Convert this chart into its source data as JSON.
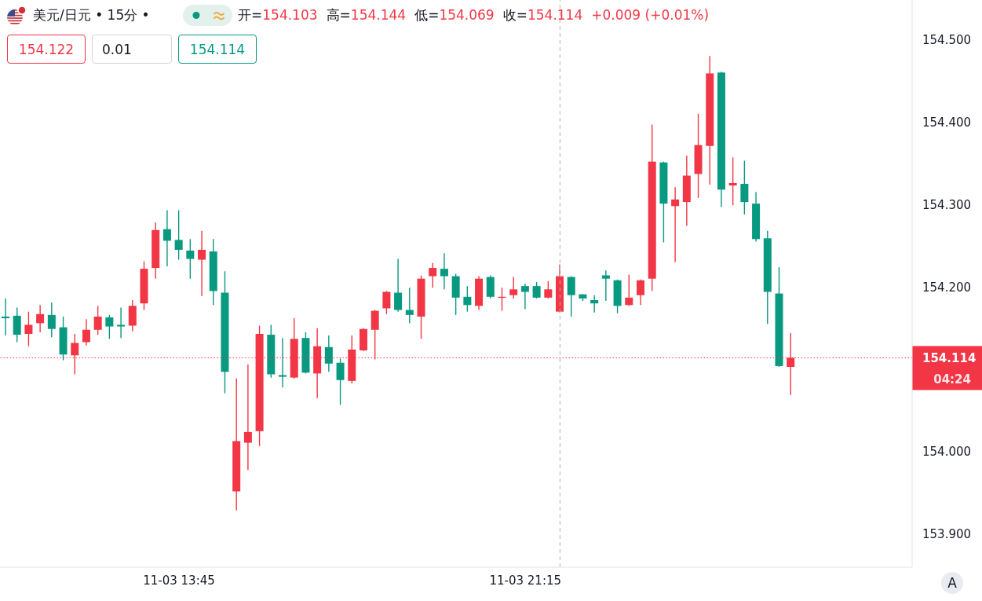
{
  "chart_data": {
    "type": "candlestick",
    "title": "美元/日元 • 15分 •",
    "categories": [
      null,
      null,
      null,
      null,
      null,
      null,
      null,
      null,
      null,
      null,
      null,
      null,
      null,
      null,
      null,
      "11-03 13:45",
      null,
      null,
      null,
      null,
      null,
      null,
      null,
      null,
      null,
      null,
      null,
      null,
      null,
      null,
      null,
      null,
      null,
      null,
      null,
      null,
      null,
      null,
      null,
      null,
      null,
      null,
      null,
      null,
      null,
      "11-03 21:15",
      null,
      null,
      null,
      null,
      null,
      null,
      null,
      null,
      null,
      null,
      null,
      null,
      null,
      null,
      null,
      null,
      null,
      null,
      null,
      null,
      null,
      null,
      null,
      null,
      null,
      null,
      null,
      null,
      null,
      null,
      null,
      null,
      null
    ],
    "ohlc": [
      [
        154.164,
        154.186,
        154.141,
        154.162
      ],
      [
        154.165,
        154.175,
        154.133,
        154.142
      ],
      [
        154.143,
        154.17,
        154.128,
        154.154
      ],
      [
        154.156,
        154.178,
        154.145,
        154.167
      ],
      [
        154.166,
        154.181,
        154.139,
        154.149
      ],
      [
        154.151,
        154.164,
        154.111,
        154.118
      ],
      [
        154.117,
        154.143,
        154.094,
        154.132
      ],
      [
        154.133,
        154.161,
        154.129,
        154.148
      ],
      [
        154.148,
        154.177,
        154.142,
        154.164
      ],
      [
        154.163,
        154.166,
        154.137,
        154.152
      ],
      [
        154.154,
        154.175,
        154.138,
        154.152
      ],
      [
        154.153,
        154.184,
        154.146,
        154.177
      ],
      [
        154.18,
        154.231,
        154.172,
        154.222
      ],
      [
        154.223,
        154.278,
        154.21,
        154.269
      ],
      [
        154.27,
        154.293,
        154.225,
        154.256
      ],
      [
        154.257,
        154.293,
        154.233,
        154.245
      ],
      [
        154.244,
        154.258,
        154.21,
        154.234
      ],
      [
        154.233,
        154.268,
        154.189,
        154.245
      ],
      [
        154.243,
        154.258,
        154.178,
        154.195
      ],
      [
        154.193,
        154.219,
        154.071,
        154.097
      ],
      [
        153.952,
        154.089,
        153.929,
        154.013
      ],
      [
        154.011,
        154.106,
        153.978,
        154.024
      ],
      [
        154.025,
        154.153,
        154.007,
        154.143
      ],
      [
        154.142,
        154.154,
        154.09,
        154.094
      ],
      [
        154.093,
        154.138,
        154.078,
        154.091
      ],
      [
        154.09,
        154.162,
        154.089,
        154.137
      ],
      [
        154.138,
        154.145,
        154.095,
        154.096
      ],
      [
        154.095,
        154.15,
        154.065,
        154.128
      ],
      [
        154.127,
        154.141,
        154.097,
        154.107
      ],
      [
        154.108,
        154.113,
        154.057,
        154.087
      ],
      [
        154.086,
        154.141,
        154.083,
        154.124
      ],
      [
        154.123,
        154.15,
        154.122,
        154.149
      ],
      [
        154.148,
        154.172,
        154.112,
        154.171
      ],
      [
        154.174,
        154.195,
        154.167,
        154.194
      ],
      [
        154.193,
        154.234,
        154.17,
        154.172
      ],
      [
        154.172,
        154.199,
        154.156,
        154.166
      ],
      [
        154.164,
        154.214,
        154.137,
        154.21
      ],
      [
        154.213,
        154.229,
        154.199,
        154.223
      ],
      [
        154.222,
        154.241,
        154.197,
        154.213
      ],
      [
        154.213,
        154.216,
        154.166,
        154.187
      ],
      [
        154.188,
        154.201,
        154.17,
        154.178
      ],
      [
        154.177,
        154.213,
        154.172,
        154.21
      ],
      [
        154.212,
        154.214,
        154.186,
        154.188
      ],
      [
        154.187,
        154.199,
        154.171,
        154.188
      ],
      [
        154.19,
        154.212,
        154.186,
        154.197
      ],
      [
        154.201,
        154.204,
        154.173,
        154.194
      ],
      [
        154.201,
        154.206,
        154.186,
        154.187
      ],
      [
        154.187,
        154.207,
        154.186,
        154.197
      ],
      [
        154.17,
        154.227,
        154.169,
        154.213
      ],
      [
        154.212,
        154.213,
        154.164,
        154.19
      ],
      [
        154.191,
        154.191,
        154.183,
        154.186
      ],
      [
        154.184,
        154.19,
        154.169,
        154.18
      ],
      [
        154.214,
        154.22,
        154.183,
        154.21
      ],
      [
        154.208,
        154.209,
        154.168,
        154.177
      ],
      [
        154.178,
        154.215,
        154.177,
        154.187
      ],
      [
        154.19,
        154.209,
        154.178,
        154.208
      ],
      [
        154.21,
        154.397,
        154.195,
        154.352
      ],
      [
        154.351,
        154.352,
        154.254,
        154.301
      ],
      [
        154.298,
        154.321,
        154.23,
        154.306
      ],
      [
        154.303,
        154.359,
        154.274,
        154.335
      ],
      [
        154.337,
        154.41,
        154.308,
        154.372
      ],
      [
        154.371,
        154.48,
        154.324,
        154.459
      ],
      [
        154.46,
        154.461,
        154.297,
        154.318
      ],
      [
        154.323,
        154.357,
        154.299,
        154.326
      ],
      [
        154.325,
        154.353,
        154.288,
        154.303
      ],
      [
        154.301,
        154.315,
        154.255,
        154.258
      ],
      [
        154.259,
        154.268,
        154.155,
        154.194
      ],
      [
        154.192,
        154.224,
        154.103,
        154.104
      ],
      [
        154.103,
        154.144,
        154.069,
        154.114
      ],
      null,
      null,
      null,
      null,
      null,
      null,
      null,
      null,
      null,
      null
    ],
    "colors": [
      "#089981",
      "#089981",
      "#f23645",
      "#f23645",
      "#089981",
      "#089981",
      "#f23645",
      "#f23645",
      "#f23645",
      "#089981",
      "#089981",
      "#f23645",
      "#f23645",
      "#f23645",
      "#089981",
      "#089981",
      "#089981",
      "#f23645",
      "#089981",
      "#089981",
      "#f23645",
      "#f23645",
      "#f23645",
      "#089981",
      "#089981",
      "#f23645",
      "#089981",
      "#f23645",
      "#089981",
      "#089981",
      "#f23645",
      "#f23645",
      "#f23645",
      "#f23645",
      "#089981",
      "#089981",
      "#f23645",
      "#f23645",
      "#089981",
      "#089981",
      "#089981",
      "#f23645",
      "#089981",
      "#f23645",
      "#f23645",
      "#089981",
      "#089981",
      "#f23645",
      "#f23645",
      "#089981",
      "#089981",
      "#089981",
      "#089981",
      "#089981",
      "#f23645",
      "#f23645",
      "#f23645",
      "#089981",
      "#f23645",
      "#f23645",
      "#f23645",
      "#f23645",
      "#089981",
      "#f23645",
      "#089981",
      "#089981",
      "#089981",
      "#089981",
      "#f23645",
      null,
      null,
      null,
      null,
      null,
      null,
      null,
      null,
      null,
      null
    ],
    "ylim": [
      153.86,
      154.548
    ],
    "yticks": [
      {
        "value": 153.9,
        "label": "153.900"
      },
      {
        "value": 154,
        "label": "154.000"
      },
      {
        "value": 154.2,
        "label": "154.200"
      },
      {
        "value": 154.3,
        "label": "154.300"
      },
      {
        "value": 154.4,
        "label": "154.400"
      },
      {
        "value": 154.5,
        "label": "154.500"
      }
    ],
    "ref_lines": [
      {
        "axis": "y",
        "value": 154.114,
        "label": "154.114",
        "color": "#f23645",
        "line_style": "dotted"
      }
    ],
    "annotations": [
      "开=154.103",
      "高=154.144",
      "低=154.069",
      "收=154.114",
      "+0.009 (+0.01%)",
      "154.122",
      "0.01",
      "154.114",
      "04:24",
      "A"
    ]
  }
}
